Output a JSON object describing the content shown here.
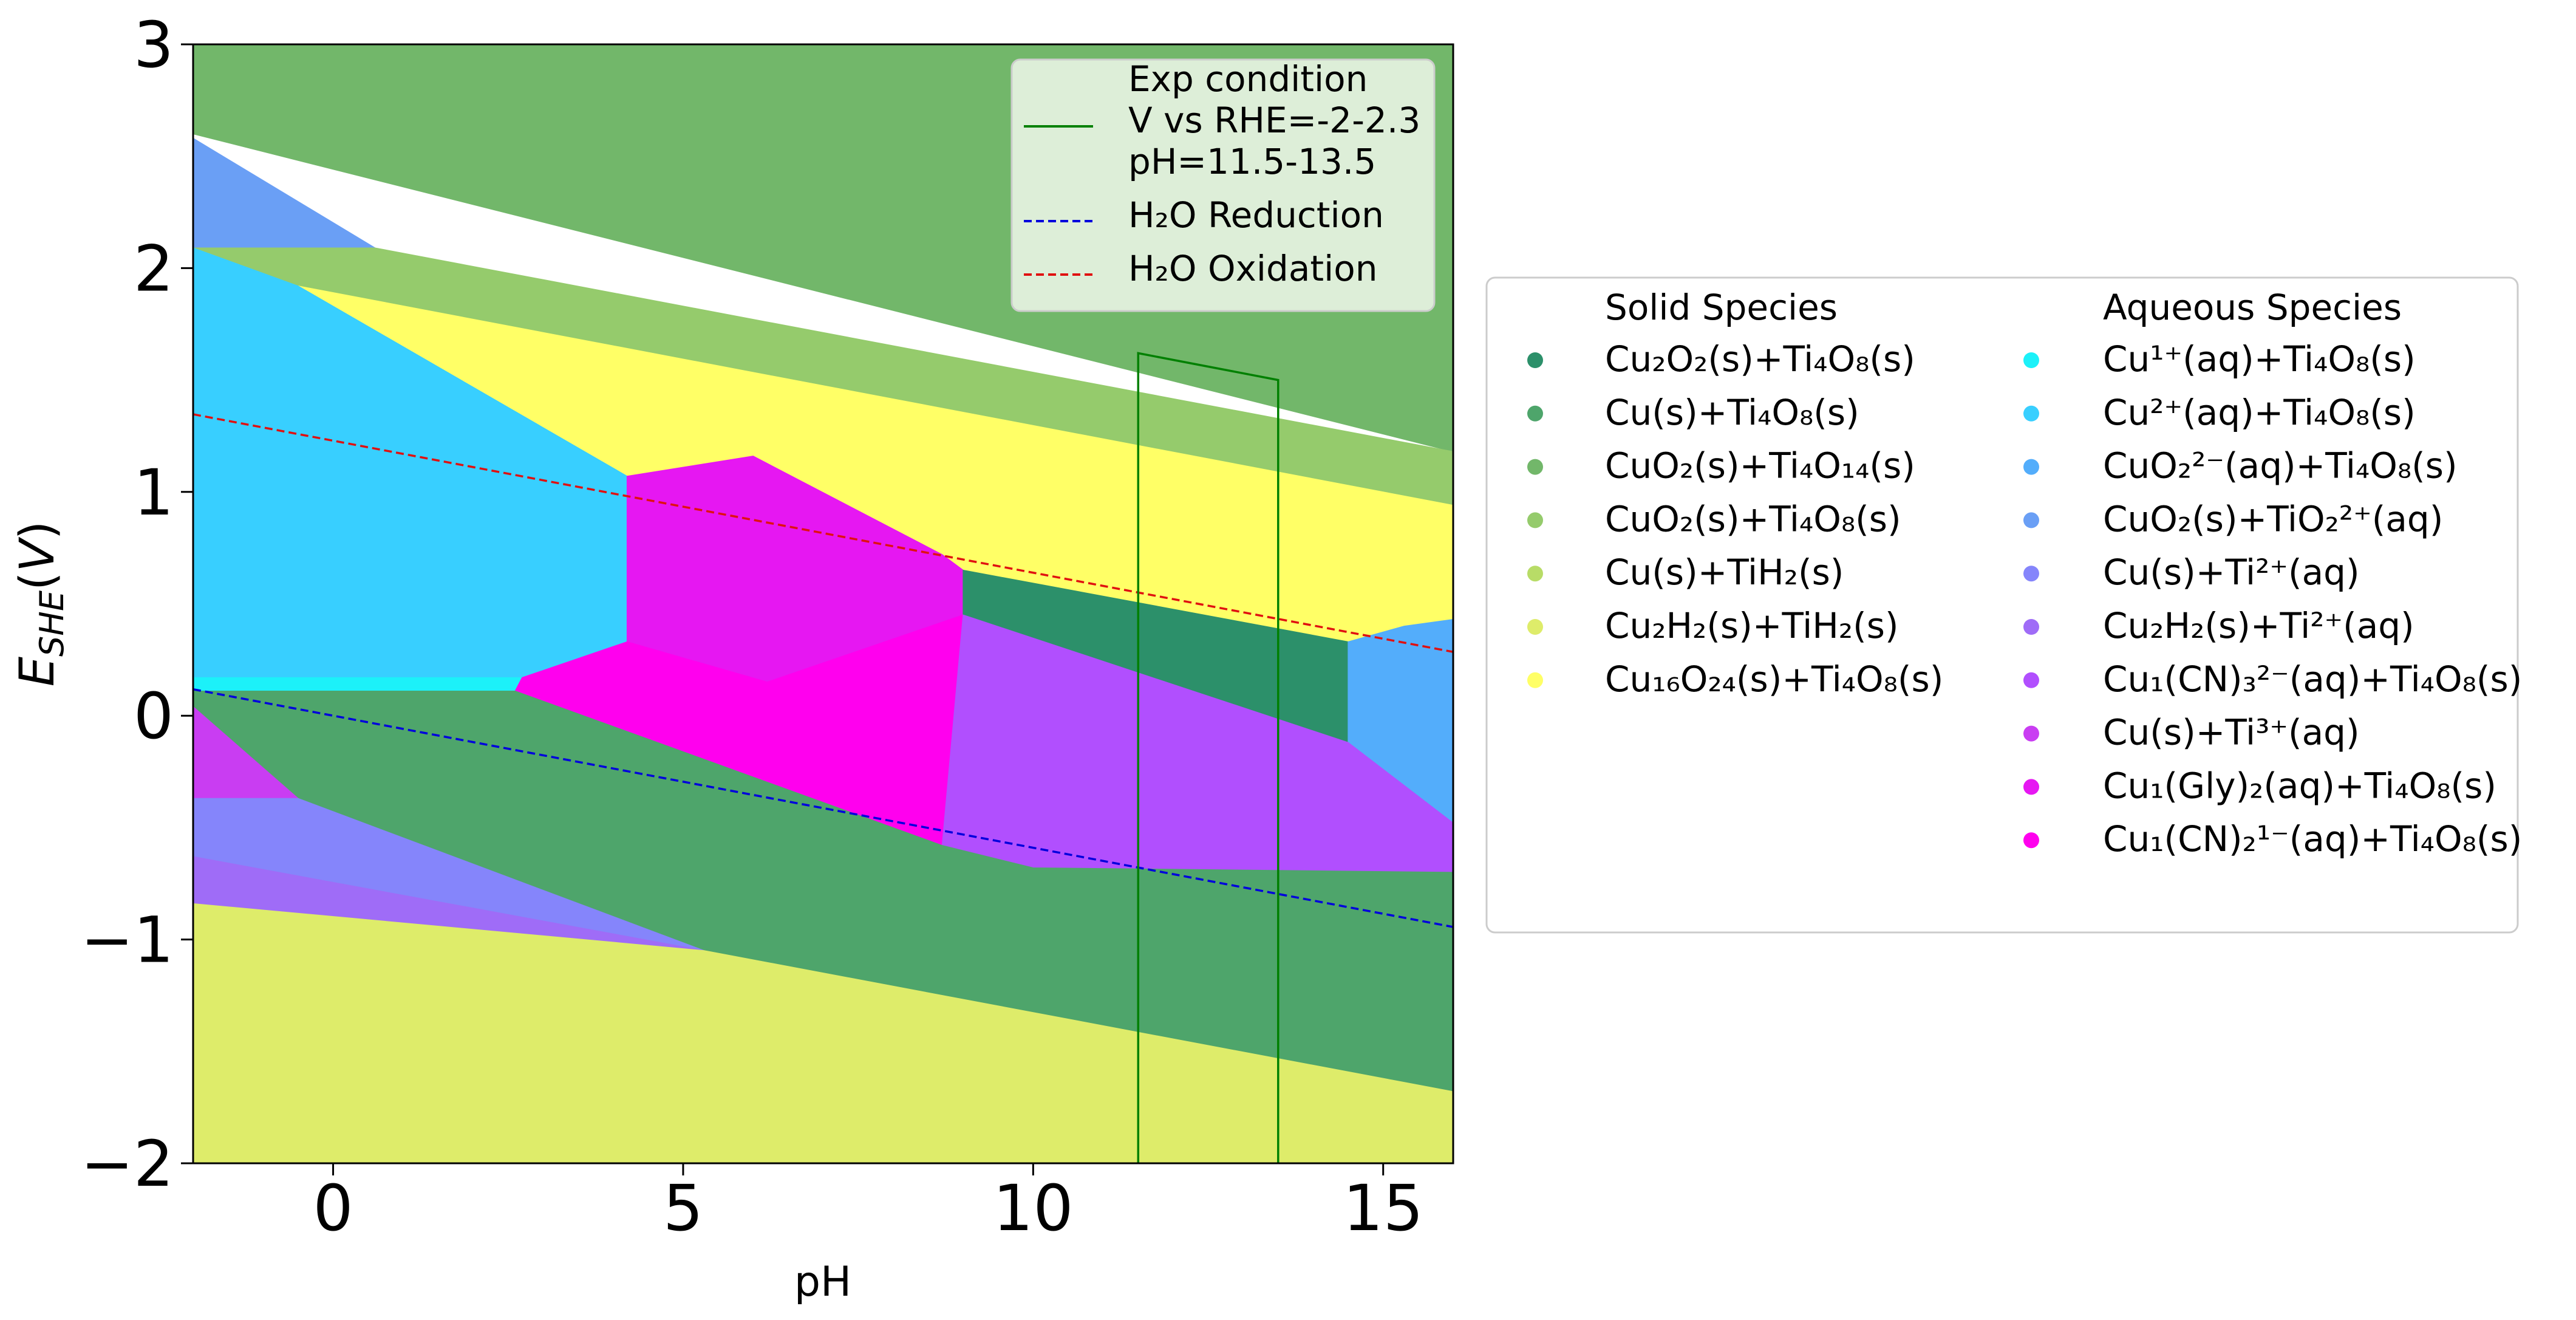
{
  "chart_data": {
    "type": "area",
    "title": "",
    "xlabel": "pH",
    "ylabel": "E_SHE(V)",
    "xlim": [
      -2,
      16
    ],
    "ylim": [
      -2,
      3
    ],
    "x_ticks": [
      0,
      5,
      10,
      15
    ],
    "y_ticks": [
      3,
      2,
      1,
      0,
      -1,
      -2
    ],
    "x_tick_labels": [
      "0",
      "5",
      "10",
      "15"
    ],
    "y_tick_labels": [
      "3",
      "2",
      "1",
      "0",
      "−1",
      "−2"
    ],
    "grid": false,
    "regions": [
      {
        "species": "CuO2(s)+Ti4O14(s)",
        "color": "#72b76a",
        "points": [
          [
            -2,
            2.6
          ],
          [
            -2,
            3
          ],
          [
            16,
            3
          ],
          [
            16,
            1.18
          ]
        ]
      },
      {
        "species": "CuO2(s)+TiO2 2+(aq)",
        "color": "#6a9ff5",
        "points": [
          [
            -2,
            2.58
          ],
          [
            0.6,
            2.09
          ],
          [
            -2,
            2.09
          ]
        ]
      },
      {
        "species": "CuO2(s)+Ti4O8(s)",
        "color": "#95cb6c",
        "points": [
          [
            -2,
            2.09
          ],
          [
            0.6,
            2.09
          ],
          [
            16,
            1.18
          ],
          [
            16,
            0.94
          ],
          [
            -0.5,
            1.92
          ]
        ]
      },
      {
        "species": "Cu16O24(s)+Ti4O8(s)",
        "color": "#ffff66",
        "points": [
          [
            -0.5,
            1.92
          ],
          [
            16,
            0.94
          ],
          [
            16,
            0.43
          ],
          [
            15.3,
            0.4
          ],
          [
            14.5,
            0.33
          ],
          [
            9.0,
            0.65
          ],
          [
            8.7,
            0.72
          ],
          [
            6.0,
            1.16
          ],
          [
            4.2,
            1.07
          ]
        ]
      },
      {
        "species": "Cu2+(aq)+Ti4O8(s)",
        "color": "#38cfff",
        "points": [
          [
            -2,
            2.09
          ],
          [
            -0.5,
            1.92
          ],
          [
            4.2,
            1.07
          ],
          [
            4.2,
            0.33
          ],
          [
            2.7,
            0.17
          ],
          [
            -2,
            0.17
          ]
        ]
      },
      {
        "species": "Cu1+(aq)+Ti4O8(s)",
        "color": "#1cf1f9",
        "points": [
          [
            -2,
            0.17
          ],
          [
            2.7,
            0.17
          ],
          [
            2.6,
            0.11
          ],
          [
            -2,
            0.11
          ]
        ]
      },
      {
        "species": "Cu1(Gly)2(aq)+Ti4O8(s)",
        "color": "#e617f2",
        "points": [
          [
            4.2,
            1.07
          ],
          [
            6.0,
            1.16
          ],
          [
            8.7,
            0.72
          ],
          [
            9.0,
            0.65
          ],
          [
            9.0,
            0.45
          ],
          [
            6.2,
            0.15
          ],
          [
            4.2,
            0.33
          ]
        ]
      },
      {
        "species": "Cu1(CN)2 1-(aq)+Ti4O8(s)",
        "color": "#ff00ee",
        "points": [
          [
            2.7,
            0.17
          ],
          [
            4.2,
            0.33
          ],
          [
            6.2,
            0.15
          ],
          [
            9.0,
            0.45
          ],
          [
            8.7,
            -0.58
          ],
          [
            2.6,
            0.11
          ]
        ]
      },
      {
        "species": "Cu2O2(s)+Ti4O8(s)",
        "color": "#2c906a",
        "points": [
          [
            9.0,
            0.65
          ],
          [
            14.5,
            0.33
          ],
          [
            14.5,
            -0.12
          ],
          [
            9.0,
            0.45
          ]
        ]
      },
      {
        "species": "CuO2 2-(aq)+Ti4O8(s)",
        "color": "#53adfb",
        "points": [
          [
            14.5,
            0.33
          ],
          [
            15.3,
            0.4
          ],
          [
            16,
            0.43
          ],
          [
            16,
            -0.48
          ],
          [
            14.5,
            -0.12
          ]
        ]
      },
      {
        "species": "Cu1(CN)3 2-(aq)+Ti4O8(s)",
        "color": "#b14ffe",
        "points": [
          [
            9.0,
            0.45
          ],
          [
            14.5,
            -0.12
          ],
          [
            16,
            -0.48
          ],
          [
            16,
            -0.7
          ],
          [
            10.0,
            -0.68
          ],
          [
            8.7,
            -0.58
          ]
        ]
      },
      {
        "species": "Cu(s)+Ti4O8(s)",
        "color": "#4ea56b",
        "points": [
          [
            -2,
            0.11
          ],
          [
            2.6,
            0.11
          ],
          [
            8.7,
            -0.58
          ],
          [
            10.0,
            -0.68
          ],
          [
            16,
            -0.7
          ],
          [
            16,
            -1.68
          ],
          [
            5.3,
            -1.05
          ],
          [
            -0.5,
            -0.37
          ],
          [
            -2,
            0.04
          ]
        ]
      },
      {
        "species": "Cu(s)+Ti3+(aq)",
        "color": "#c93df2",
        "points": [
          [
            -2,
            0.04
          ],
          [
            -0.5,
            -0.37
          ],
          [
            -2,
            -0.37
          ]
        ]
      },
      {
        "species": "Cu(s)+Ti2+(aq)",
        "color": "#8585fb",
        "points": [
          [
            -2,
            -0.37
          ],
          [
            -0.5,
            -0.37
          ],
          [
            5.3,
            -1.05
          ],
          [
            -2,
            -0.63
          ]
        ]
      },
      {
        "species": "Cu2H2(s)+Ti2+(aq)",
        "color": "#9f6cf7",
        "points": [
          [
            -2,
            -0.63
          ],
          [
            5.3,
            -1.05
          ],
          [
            -2,
            -0.84
          ]
        ]
      },
      {
        "species": "Cu2H2(s)+TiH2(s)",
        "color": "#deec6a",
        "points": [
          [
            -2,
            -0.84
          ],
          [
            5.3,
            -1.05
          ],
          [
            16,
            -1.68
          ],
          [
            16,
            -2
          ],
          [
            -2,
            -2
          ]
        ]
      }
    ],
    "lines": [
      {
        "name": "H2O Reduction",
        "color": "#0000dd",
        "dash": "dashed",
        "x": [
          -2,
          16
        ],
        "y": [
          0.118,
          -0.944
        ]
      },
      {
        "name": "H2O Oxidation",
        "color": "#e01010",
        "dash": "dashed",
        "x": [
          -2,
          16
        ],
        "y": [
          1.347,
          0.285
        ]
      },
      {
        "name": "Exp condition",
        "color": "#008000",
        "dash": "solid",
        "x": [
          11.5,
          11.5,
          13.5,
          13.5
        ],
        "y": [
          -2,
          1.62,
          1.5,
          -2
        ]
      }
    ],
    "legend_top": {
      "placement": "top-right",
      "entries": [
        {
          "lines": [
            "Exp condition",
            "V vs RHE=-2-2.3",
            "pH=11.5-13.5"
          ],
          "color": "#008000",
          "dash": "solid"
        },
        {
          "lines": [
            "H₂O Reduction"
          ],
          "color": "#0000dd",
          "dash": "dashed"
        },
        {
          "lines": [
            "H₂O Oxidation"
          ],
          "color": "#e01010",
          "dash": "dashed"
        }
      ]
    },
    "legend_species": {
      "placement": "right",
      "solid_title": "Solid Species",
      "aqueous_title": "Aqueous Species",
      "solid": [
        {
          "label": "Cu₂O₂(s)+Ti₄O₈(s)",
          "color": "#2c906a"
        },
        {
          "label": "Cu(s)+Ti₄O₈(s)",
          "color": "#4ea56b"
        },
        {
          "label": "CuO₂(s)+Ti₄O₁₄(s)",
          "color": "#72b76a"
        },
        {
          "label": "CuO₂(s)+Ti₄O₈(s)",
          "color": "#95cb6c"
        },
        {
          "label": "Cu(s)+TiH₂(s)",
          "color": "#b8dc67"
        },
        {
          "label": "Cu₂H₂(s)+TiH₂(s)",
          "color": "#deec6a"
        },
        {
          "label": "Cu₁₆O₂₄(s)+Ti₄O₈(s)",
          "color": "#ffff66"
        }
      ],
      "aqueous": [
        {
          "label": "Cu¹⁺(aq)+Ti₄O₈(s)",
          "color": "#1cf1f9"
        },
        {
          "label": "Cu²⁺(aq)+Ti₄O₈(s)",
          "color": "#38cfff"
        },
        {
          "label": "CuO₂²⁻(aq)+Ti₄O₈(s)",
          "color": "#53adfb"
        },
        {
          "label": "CuO₂(s)+TiO₂²⁺(aq)",
          "color": "#6a9ff5"
        },
        {
          "label": "Cu(s)+Ti²⁺(aq)",
          "color": "#8585fb"
        },
        {
          "label": "Cu₂H₂(s)+Ti²⁺(aq)",
          "color": "#9f6cf7"
        },
        {
          "label": "Cu₁(CN)₃²⁻(aq)+Ti₄O₈(s)",
          "color": "#b14ffe"
        },
        {
          "label": "Cu(s)+Ti³⁺(aq)",
          "color": "#c93df2"
        },
        {
          "label": "Cu₁(Gly)₂(aq)+Ti₄O₈(s)",
          "color": "#e617f2"
        },
        {
          "label": "Cu₁(CN)₂¹⁻(aq)+Ti₄O₈(s)",
          "color": "#ff00ee"
        }
      ]
    }
  }
}
